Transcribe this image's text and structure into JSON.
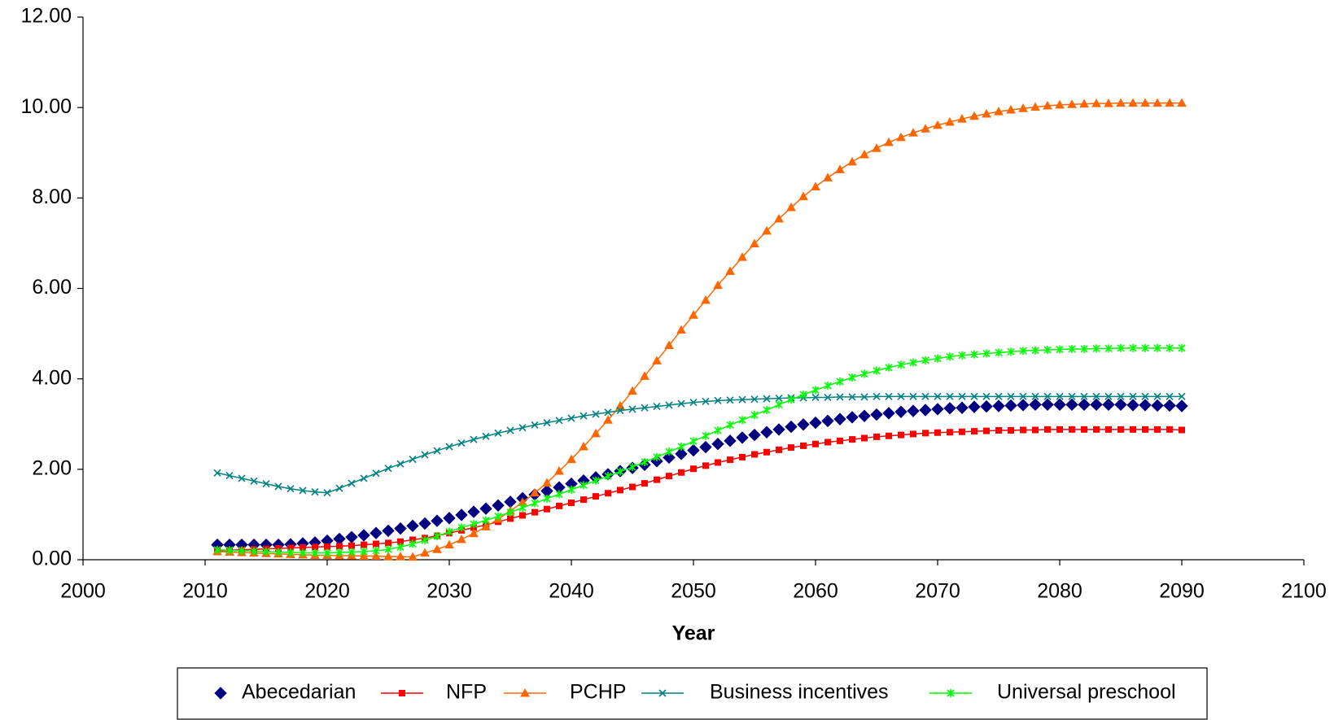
{
  "chart_data": {
    "type": "line",
    "x_label": "Year",
    "x": [
      2011,
      2012,
      2013,
      2014,
      2015,
      2016,
      2017,
      2018,
      2019,
      2020,
      2021,
      2022,
      2023,
      2024,
      2025,
      2026,
      2027,
      2028,
      2029,
      2030,
      2031,
      2032,
      2033,
      2034,
      2035,
      2036,
      2037,
      2038,
      2039,
      2040,
      2041,
      2042,
      2043,
      2044,
      2045,
      2046,
      2047,
      2048,
      2049,
      2050,
      2051,
      2052,
      2053,
      2054,
      2055,
      2056,
      2057,
      2058,
      2059,
      2060,
      2061,
      2062,
      2063,
      2064,
      2065,
      2066,
      2067,
      2068,
      2069,
      2070,
      2071,
      2072,
      2073,
      2074,
      2075,
      2076,
      2077,
      2078,
      2079,
      2080,
      2081,
      2082,
      2083,
      2084,
      2085,
      2086,
      2087,
      2088,
      2089,
      2090
    ],
    "series": [
      {
        "name": "Abecedarian",
        "color": "#000080",
        "marker": "diamond",
        "line": false,
        "values": [
          0.33,
          0.33,
          0.33,
          0.33,
          0.33,
          0.33,
          0.34,
          0.36,
          0.38,
          0.42,
          0.46,
          0.5,
          0.54,
          0.59,
          0.64,
          0.69,
          0.75,
          0.8,
          0.86,
          0.92,
          0.99,
          1.06,
          1.13,
          1.2,
          1.28,
          1.36,
          1.44,
          1.52,
          1.6,
          1.68,
          1.75,
          1.82,
          1.89,
          1.96,
          2.03,
          2.1,
          2.18,
          2.26,
          2.34,
          2.42,
          2.49,
          2.56,
          2.63,
          2.7,
          2.76,
          2.82,
          2.88,
          2.94,
          2.99,
          3.03,
          3.07,
          3.11,
          3.15,
          3.18,
          3.21,
          3.24,
          3.27,
          3.29,
          3.31,
          3.33,
          3.35,
          3.36,
          3.38,
          3.39,
          3.4,
          3.41,
          3.42,
          3.43,
          3.43,
          3.43,
          3.43,
          3.43,
          3.43,
          3.43,
          3.43,
          3.42,
          3.42,
          3.41,
          3.41,
          3.4
        ]
      },
      {
        "name": "NFP",
        "color": "#ff0000",
        "marker": "square",
        "line": true,
        "values": [
          0.2,
          0.21,
          0.22,
          0.23,
          0.24,
          0.25,
          0.26,
          0.27,
          0.28,
          0.29,
          0.3,
          0.31,
          0.33,
          0.35,
          0.37,
          0.4,
          0.44,
          0.48,
          0.53,
          0.59,
          0.65,
          0.71,
          0.77,
          0.84,
          0.91,
          0.98,
          1.05,
          1.12,
          1.19,
          1.26,
          1.33,
          1.4,
          1.47,
          1.54,
          1.61,
          1.69,
          1.77,
          1.85,
          1.93,
          2.01,
          2.08,
          2.15,
          2.21,
          2.27,
          2.33,
          2.38,
          2.43,
          2.48,
          2.52,
          2.56,
          2.6,
          2.63,
          2.66,
          2.69,
          2.72,
          2.74,
          2.76,
          2.78,
          2.8,
          2.81,
          2.82,
          2.83,
          2.84,
          2.85,
          2.86,
          2.86,
          2.87,
          2.87,
          2.88,
          2.88,
          2.88,
          2.88,
          2.88,
          2.88,
          2.88,
          2.88,
          2.88,
          2.88,
          2.88,
          2.87
        ]
      },
      {
        "name": "PCHP",
        "color": "#ff6600",
        "marker": "triangle",
        "line": true,
        "values": [
          0.18,
          0.17,
          0.16,
          0.15,
          0.14,
          0.13,
          0.12,
          0.11,
          0.1,
          0.1,
          0.09,
          0.09,
          0.08,
          0.08,
          0.07,
          0.07,
          0.06,
          0.15,
          0.23,
          0.33,
          0.45,
          0.58,
          0.73,
          0.9,
          1.08,
          1.27,
          1.48,
          1.7,
          1.96,
          2.22,
          2.5,
          2.79,
          3.09,
          3.4,
          3.73,
          4.06,
          4.4,
          4.74,
          5.08,
          5.41,
          5.74,
          6.07,
          6.38,
          6.69,
          6.99,
          7.27,
          7.54,
          7.79,
          8.03,
          8.25,
          8.45,
          8.63,
          8.8,
          8.96,
          9.1,
          9.23,
          9.34,
          9.44,
          9.53,
          9.61,
          9.68,
          9.75,
          9.81,
          9.86,
          9.91,
          9.95,
          9.98,
          10.01,
          10.04,
          10.06,
          10.07,
          10.08,
          10.09,
          10.09,
          10.1,
          10.1,
          10.1,
          10.1,
          10.1,
          10.1
        ]
      },
      {
        "name": "Business incentives",
        "color": "#008080",
        "marker": "x",
        "line": true,
        "values": [
          1.92,
          1.86,
          1.8,
          1.74,
          1.68,
          1.62,
          1.57,
          1.53,
          1.5,
          1.48,
          1.58,
          1.69,
          1.8,
          1.91,
          2.02,
          2.12,
          2.22,
          2.32,
          2.41,
          2.5,
          2.58,
          2.66,
          2.73,
          2.8,
          2.86,
          2.92,
          2.98,
          3.03,
          3.08,
          3.13,
          3.18,
          3.22,
          3.26,
          3.3,
          3.33,
          3.36,
          3.39,
          3.42,
          3.45,
          3.48,
          3.5,
          3.52,
          3.53,
          3.54,
          3.55,
          3.56,
          3.57,
          3.58,
          3.58,
          3.59,
          3.59,
          3.6,
          3.6,
          3.6,
          3.61,
          3.61,
          3.61,
          3.61,
          3.61,
          3.61,
          3.61,
          3.61,
          3.61,
          3.61,
          3.61,
          3.61,
          3.61,
          3.61,
          3.61,
          3.61,
          3.61,
          3.61,
          3.61,
          3.61,
          3.61,
          3.61,
          3.61,
          3.61,
          3.61,
          3.61
        ]
      },
      {
        "name": "Universal preschool",
        "color": "#00ff00",
        "marker": "star",
        "line": true,
        "values": [
          0.22,
          0.21,
          0.2,
          0.19,
          0.18,
          0.17,
          0.16,
          0.15,
          0.15,
          0.15,
          0.16,
          0.17,
          0.18,
          0.2,
          0.23,
          0.28,
          0.35,
          0.43,
          0.52,
          0.62,
          0.71,
          0.79,
          0.87,
          0.96,
          1.05,
          1.15,
          1.25,
          1.35,
          1.45,
          1.55,
          1.65,
          1.75,
          1.85,
          1.95,
          2.05,
          2.16,
          2.27,
          2.39,
          2.5,
          2.62,
          2.74,
          2.86,
          2.98,
          3.09,
          3.2,
          3.31,
          3.43,
          3.54,
          3.65,
          3.75,
          3.85,
          3.94,
          4.03,
          4.11,
          4.18,
          4.25,
          4.31,
          4.36,
          4.41,
          4.45,
          4.49,
          4.52,
          4.54,
          4.56,
          4.58,
          4.6,
          4.62,
          4.63,
          4.64,
          4.65,
          4.66,
          4.66,
          4.67,
          4.67,
          4.68,
          4.68,
          4.68,
          4.68,
          4.68,
          4.68
        ]
      }
    ],
    "xlim": [
      2000,
      2100
    ],
    "xticks": [
      2000,
      2010,
      2020,
      2030,
      2040,
      2050,
      2060,
      2070,
      2080,
      2090,
      2100
    ],
    "ylim": [
      0,
      12
    ],
    "yticks": [
      {
        "value": 0,
        "label": "0.00"
      },
      {
        "value": 2,
        "label": "2.00"
      },
      {
        "value": 4,
        "label": "4.00"
      },
      {
        "value": 6,
        "label": "6.00"
      },
      {
        "value": 8,
        "label": "8.00"
      },
      {
        "value": 10,
        "label": "10.00"
      },
      {
        "value": 12,
        "label": "12.00"
      }
    ],
    "grid": false,
    "legend": "bottom"
  }
}
